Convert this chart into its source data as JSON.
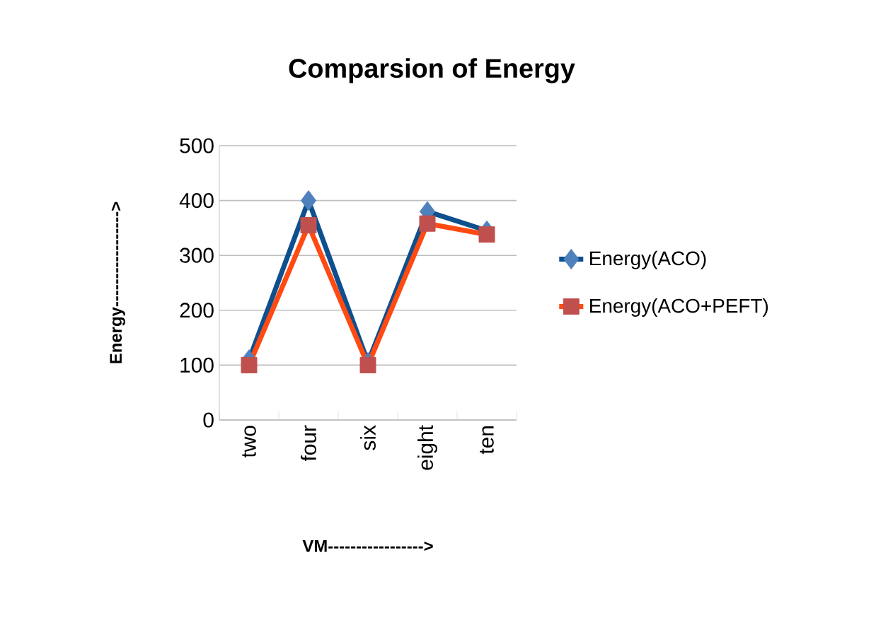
{
  "chart_data": {
    "type": "line",
    "title": "Comparsion of Energy",
    "xlabel": "VM----------------->",
    "ylabel": "Energy----------------->",
    "categories": [
      "two",
      "four",
      "six",
      "eight",
      "ten"
    ],
    "series": [
      {
        "name": "Energy(ACO)",
        "color": "#0e4f8e",
        "colors": [
          "#4f81bd",
          "#4f81bd",
          "#4f81bd",
          "#4f81bd",
          "#4f81bd"
        ],
        "marker": "diamond",
        "values": [
          110,
          400,
          105,
          380,
          345
        ]
      },
      {
        "name": "Energy(ACO+PEFT)",
        "color": "#ff4a12",
        "colors": [
          "#c0504d",
          "#c0504d",
          "#c0504d",
          "#c0504d",
          "#c0504d"
        ],
        "marker": "square",
        "values": [
          100,
          355,
          100,
          358,
          338
        ]
      }
    ],
    "ylim": [
      0,
      500
    ],
    "yticks": [
      0,
      100,
      200,
      300,
      400,
      500
    ],
    "grid": "y",
    "legend": "right",
    "line_style": "solid"
  }
}
